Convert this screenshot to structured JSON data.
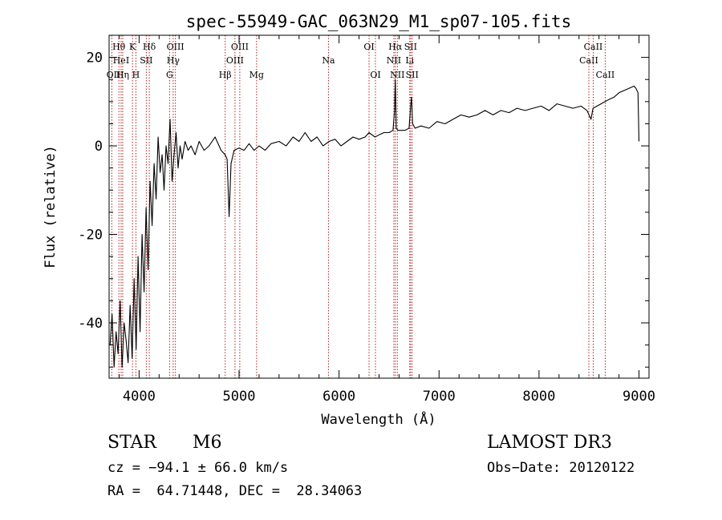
{
  "chart_data": {
    "type": "line",
    "title": "spec-55949-GAC_063N29_M1_sp07-105.fits",
    "xlabel": "Wavelength (Å)",
    "ylabel": "Flux (relative)",
    "xlim": [
      3700,
      9100
    ],
    "ylim": [
      -52.5,
      25
    ],
    "x_ticks": [
      4000,
      5000,
      6000,
      7000,
      8000,
      9000
    ],
    "y_ticks": [
      -40,
      -20,
      0,
      20
    ],
    "grid": false,
    "series": [
      {
        "name": "spectrum",
        "color": "#000000",
        "points": [
          [
            3710,
            -45
          ],
          [
            3730,
            -38
          ],
          [
            3750,
            -50
          ],
          [
            3770,
            -42
          ],
          [
            3790,
            -47
          ],
          [
            3810,
            -35
          ],
          [
            3830,
            -50
          ],
          [
            3850,
            -40
          ],
          [
            3870,
            -44
          ],
          [
            3890,
            -49
          ],
          [
            3910,
            -36
          ],
          [
            3930,
            -48
          ],
          [
            3950,
            -30
          ],
          [
            3970,
            -46
          ],
          [
            3990,
            -25
          ],
          [
            4010,
            -42
          ],
          [
            4030,
            -20
          ],
          [
            4050,
            -33
          ],
          [
            4070,
            -14
          ],
          [
            4090,
            -28
          ],
          [
            4110,
            -8
          ],
          [
            4130,
            -18
          ],
          [
            4150,
            -4
          ],
          [
            4170,
            -12
          ],
          [
            4190,
            2
          ],
          [
            4210,
            -6
          ],
          [
            4230,
            -2
          ],
          [
            4250,
            -10
          ],
          [
            4270,
            0
          ],
          [
            4290,
            -4
          ],
          [
            4310,
            6
          ],
          [
            4330,
            -8
          ],
          [
            4350,
            -2
          ],
          [
            4370,
            3
          ],
          [
            4390,
            -5
          ],
          [
            4410,
            0
          ],
          [
            4430,
            -3
          ],
          [
            4460,
            1
          ],
          [
            4490,
            -1
          ],
          [
            4520,
            0
          ],
          [
            4560,
            -2
          ],
          [
            4600,
            1
          ],
          [
            4650,
            -1
          ],
          [
            4700,
            0
          ],
          [
            4760,
            2
          ],
          [
            4820,
            -1
          ],
          [
            4860,
            -2
          ],
          [
            4880,
            -3
          ],
          [
            4900,
            -16
          ],
          [
            4920,
            -4
          ],
          [
            4950,
            -1
          ],
          [
            5000,
            -0.5
          ],
          [
            5050,
            -1
          ],
          [
            5100,
            0.5
          ],
          [
            5150,
            -1
          ],
          [
            5200,
            0
          ],
          [
            5260,
            -1
          ],
          [
            5320,
            0.5
          ],
          [
            5400,
            1
          ],
          [
            5470,
            0
          ],
          [
            5540,
            2
          ],
          [
            5600,
            1
          ],
          [
            5660,
            3
          ],
          [
            5720,
            1
          ],
          [
            5780,
            2
          ],
          [
            5840,
            0
          ],
          [
            5900,
            1
          ],
          [
            5960,
            1.5
          ],
          [
            6020,
            0
          ],
          [
            6080,
            1
          ],
          [
            6140,
            2
          ],
          [
            6200,
            1.5
          ],
          [
            6260,
            2
          ],
          [
            6300,
            3
          ],
          [
            6330,
            2.5
          ],
          [
            6360,
            2
          ],
          [
            6400,
            2.5
          ],
          [
            6450,
            3
          ],
          [
            6500,
            3
          ],
          [
            6540,
            3.5
          ],
          [
            6555,
            8
          ],
          [
            6563,
            15
          ],
          [
            6572,
            4
          ],
          [
            6590,
            3.5
          ],
          [
            6620,
            3.5
          ],
          [
            6660,
            3.5
          ],
          [
            6700,
            4
          ],
          [
            6716,
            9
          ],
          [
            6725,
            11
          ],
          [
            6735,
            5
          ],
          [
            6760,
            4
          ],
          [
            6820,
            4.5
          ],
          [
            6900,
            4
          ],
          [
            6980,
            5.5
          ],
          [
            7060,
            5
          ],
          [
            7140,
            6
          ],
          [
            7220,
            7
          ],
          [
            7300,
            6.5
          ],
          [
            7380,
            7
          ],
          [
            7460,
            8
          ],
          [
            7540,
            7
          ],
          [
            7620,
            8
          ],
          [
            7700,
            7.5
          ],
          [
            7780,
            8.5
          ],
          [
            7860,
            8
          ],
          [
            7940,
            8.5
          ],
          [
            8020,
            9
          ],
          [
            8100,
            8
          ],
          [
            8180,
            9.5
          ],
          [
            8260,
            9
          ],
          [
            8340,
            8.5
          ],
          [
            8420,
            9
          ],
          [
            8480,
            8
          ],
          [
            8520,
            6
          ],
          [
            8540,
            8.5
          ],
          [
            8580,
            9
          ],
          [
            8620,
            9.5
          ],
          [
            8660,
            10
          ],
          [
            8700,
            10.5
          ],
          [
            8750,
            11
          ],
          [
            8800,
            12
          ],
          [
            8850,
            12.5
          ],
          [
            8900,
            13
          ],
          [
            8950,
            13.5
          ],
          [
            8970,
            13
          ],
          [
            8990,
            12
          ],
          [
            9000,
            1
          ]
        ]
      }
    ],
    "line_markers": [
      {
        "label": "OII",
        "wavelength": 3727,
        "row": 3,
        "align": "right"
      },
      {
        "label": "Hθ",
        "wavelength": 3798,
        "row": 1,
        "align": "center"
      },
      {
        "label": "HeI",
        "wavelength": 3820,
        "row": 2,
        "align": "center"
      },
      {
        "label": "Hη",
        "wavelength": 3836,
        "row": 3,
        "align": "center"
      },
      {
        "label": "K",
        "wavelength": 3934,
        "row": 1,
        "align": "center"
      },
      {
        "label": "H",
        "wavelength": 3968,
        "row": 3,
        "align": "center"
      },
      {
        "label": "SII",
        "wavelength": 4072,
        "row": 2,
        "align": "center"
      },
      {
        "label": "Hδ",
        "wavelength": 4102,
        "row": 1,
        "align": "center"
      },
      {
        "label": "G",
        "wavelength": 4305,
        "row": 3,
        "align": "center"
      },
      {
        "label": "Hγ",
        "wavelength": 4341,
        "row": 2,
        "align": "center"
      },
      {
        "label": "OIII",
        "wavelength": 4363,
        "row": 1,
        "align": "center"
      },
      {
        "label": "Hβ",
        "wavelength": 4861,
        "row": 3,
        "align": "center"
      },
      {
        "label": "OIII",
        "wavelength": 4959,
        "row": 2,
        "align": "center"
      },
      {
        "label": "OIII",
        "wavelength": 5007,
        "row": 1,
        "align": "center"
      },
      {
        "label": "Mg",
        "wavelength": 5175,
        "row": 3,
        "align": "center"
      },
      {
        "label": "Na",
        "wavelength": 5894,
        "row": 2,
        "align": "center"
      },
      {
        "label": "OI",
        "wavelength": 6300,
        "row": 1,
        "align": "center"
      },
      {
        "label": "OI",
        "wavelength": 6364,
        "row": 3,
        "align": "center"
      },
      {
        "label": "NII",
        "wavelength": 6548,
        "row": 2,
        "align": "center"
      },
      {
        "label": "Hα",
        "wavelength": 6563,
        "row": 1,
        "align": "center"
      },
      {
        "label": "NII",
        "wavelength": 6583,
        "row": 3,
        "align": "center"
      },
      {
        "label": "Li",
        "wavelength": 6707,
        "row": 2,
        "align": "center"
      },
      {
        "label": "SII",
        "wavelength": 6716,
        "row": 1,
        "align": "center"
      },
      {
        "label": "SII",
        "wavelength": 6731,
        "row": 3,
        "align": "center"
      },
      {
        "label": "CaII",
        "wavelength": 8498,
        "row": 2,
        "align": "center"
      },
      {
        "label": "CaII",
        "wavelength": 8542,
        "row": 1,
        "align": "center"
      },
      {
        "label": "CaII",
        "wavelength": 8662,
        "row": 3,
        "align": "center"
      }
    ],
    "marker_color": "#b22222"
  },
  "info": {
    "class_label": "STAR",
    "subclass": "M6",
    "survey": "LAMOST DR3",
    "cz": "cz = −94.1 ± 66.0 km/s",
    "obs_date": "Obs−Date: 20120122",
    "coords": "RA =  64.71448, DEC =  28.34063"
  }
}
